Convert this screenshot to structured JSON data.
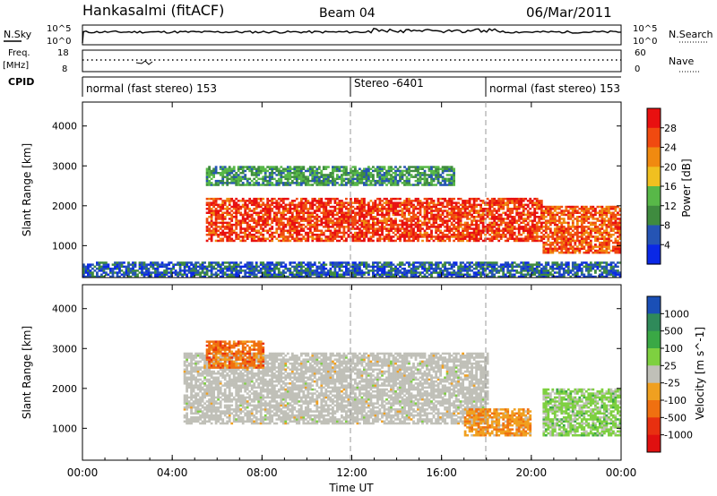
{
  "header": {
    "station": "Hankasalmi (fitACF)",
    "beam": "Beam 04",
    "date": "06/Mar/2011"
  },
  "panels": {
    "nsky_label": "N.Sky",
    "nsky_ticks": [
      "10^5",
      "10^0"
    ],
    "nsearch_label": "N.Search",
    "nsearch_ticks": [
      "10^5",
      "10^0"
    ],
    "freq_label_1": "Freq.",
    "freq_label_2": "[MHz]",
    "freq_ticks": [
      "18",
      "8"
    ],
    "nave_label": "Nave",
    "nave_ticks": [
      "60",
      "0"
    ],
    "cpid_label": "CPID",
    "cpid_segments": [
      {
        "label": "normal (fast stereo) 153",
        "start_h": 0,
        "end_h": 12
      },
      {
        "label": "Stereo -6401",
        "start_h": 12,
        "end_h": 18
      },
      {
        "label": "normal (fast stereo) 153",
        "start_h": 18,
        "end_h": 24
      }
    ]
  },
  "colors": {
    "power_scale": [
      "#0a28e6",
      "#2554b4",
      "#3f8b3f",
      "#58b848",
      "#f0c020",
      "#f08a10",
      "#f04a10",
      "#e81010"
    ],
    "velocity_scale": [
      "#1a4fb6",
      "#2f8a5a",
      "#3aa845",
      "#7ed040",
      "#c0c0b8",
      "#f0a020",
      "#f07010",
      "#e83010",
      "#e01010"
    ],
    "ground_scatter": "#c0c0b8"
  },
  "chart_data": [
    {
      "type": "heatmap",
      "name": "power",
      "xlabel": "Time UT",
      "ylabel": "Slant Range [km]",
      "x_ticks": [
        "00:00",
        "04:00",
        "08:00",
        "12:00",
        "16:00",
        "20:00",
        "00:00"
      ],
      "y_ticks": [
        "1000",
        "2000",
        "3000",
        "4000"
      ],
      "xlim_hours": [
        0,
        24
      ],
      "ylim_km": [
        200,
        4600
      ],
      "colorbar": {
        "label": "Power [dB]",
        "ticks": [
          "28",
          "24",
          "20",
          "16",
          "12",
          "8",
          "4"
        ],
        "range": [
          0,
          30
        ]
      },
      "features": [
        {
          "region": "main band",
          "t_start": 5.5,
          "t_end": 20.5,
          "range_km": [
            1100,
            2200
          ],
          "power_db": 26
        },
        {
          "region": "upper band",
          "t_start": 5.5,
          "t_end": 16.5,
          "range_km": [
            2500,
            3000
          ],
          "power_db": 10
        },
        {
          "region": "late echoes",
          "t_start": 20.5,
          "t_end": 24,
          "range_km": [
            800,
            2000
          ],
          "power_db": 24
        },
        {
          "region": "near-range noise",
          "t_start": 0,
          "t_end": 24,
          "range_km": [
            200,
            600
          ],
          "power_db": 6
        }
      ]
    },
    {
      "type": "heatmap",
      "name": "velocity",
      "xlabel": "Time UT",
      "ylabel": "Slant Range [km]",
      "x_ticks": [
        "00:00",
        "04:00",
        "08:00",
        "12:00",
        "16:00",
        "20:00",
        "00:00"
      ],
      "y_ticks": [
        "1000",
        "2000",
        "3000",
        "4000"
      ],
      "xlim_hours": [
        0,
        24
      ],
      "ylim_km": [
        200,
        4600
      ],
      "colorbar": {
        "label": "Velocity [m s^-1]",
        "ticks": [
          "1000",
          "500",
          "100",
          "25",
          "-25",
          "-100",
          "-500",
          "-1000"
        ],
        "range": [
          -1000,
          1000
        ]
      },
      "features": [
        {
          "region": "ground scatter",
          "t_start": 4.5,
          "t_end": 18,
          "range_km": [
            1100,
            2900
          ],
          "velocity": 0
        },
        {
          "region": "negative velocities",
          "t_start": 5.5,
          "t_end": 8,
          "range_km": [
            2500,
            3200
          ],
          "velocity": -500
        },
        {
          "region": "evening negative",
          "t_start": 17,
          "t_end": 20,
          "range_km": [
            800,
            1500
          ],
          "velocity": -300
        },
        {
          "region": "positive late",
          "t_start": 20.5,
          "t_end": 24,
          "range_km": [
            800,
            2000
          ],
          "velocity": 200
        }
      ]
    }
  ]
}
